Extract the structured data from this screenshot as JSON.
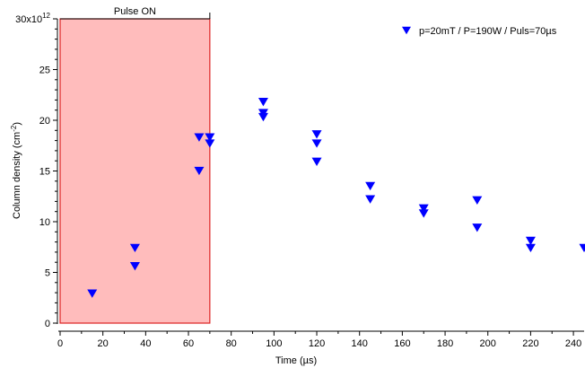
{
  "chart_data": {
    "type": "scatter",
    "xlabel": "Time (µs)",
    "ylabel": "Column density (cm",
    "ylabel_sup": "-2",
    "ylabel_close": ")",
    "xlim": [
      0,
      245
    ],
    "ylim": [
      0,
      30
    ],
    "x_ticks": [
      0,
      20,
      40,
      60,
      80,
      100,
      120,
      140,
      160,
      180,
      200,
      220,
      240
    ],
    "y_ticks": [
      {
        "value": 0,
        "label": "0"
      },
      {
        "value": 5,
        "label": "5"
      },
      {
        "value": 10,
        "label": "10"
      },
      {
        "value": 15,
        "label": "15"
      },
      {
        "value": 20,
        "label": "20"
      },
      {
        "value": 25,
        "label": "25"
      }
    ],
    "y_top_label": "30x10",
    "y_top_exponent": "12",
    "pulse_region": {
      "x_start": 0,
      "x_end": 70,
      "label": "Pulse ON",
      "fill": "#ffbcbc",
      "stroke": "#dd2222"
    },
    "marker_color": "#0000ff",
    "series": [
      {
        "name": "p=20mT / P=190W / Puls=70µs",
        "points": [
          {
            "x": 15,
            "y": 2.9
          },
          {
            "x": 35,
            "y": 7.4
          },
          {
            "x": 35,
            "y": 5.6
          },
          {
            "x": 65,
            "y": 18.3
          },
          {
            "x": 65,
            "y": 15.0
          },
          {
            "x": 70,
            "y": 18.3
          },
          {
            "x": 70,
            "y": 17.7
          },
          {
            "x": 95,
            "y": 21.8
          },
          {
            "x": 95,
            "y": 20.7
          },
          {
            "x": 95,
            "y": 20.3
          },
          {
            "x": 120,
            "y": 18.6
          },
          {
            "x": 120,
            "y": 17.7
          },
          {
            "x": 120,
            "y": 15.9
          },
          {
            "x": 145,
            "y": 13.5
          },
          {
            "x": 145,
            "y": 12.2
          },
          {
            "x": 170,
            "y": 11.3
          },
          {
            "x": 170,
            "y": 10.8
          },
          {
            "x": 195,
            "y": 12.1
          },
          {
            "x": 195,
            "y": 9.4
          },
          {
            "x": 220,
            "y": 8.1
          },
          {
            "x": 220,
            "y": 7.4
          },
          {
            "x": 245,
            "y": 7.4
          }
        ]
      }
    ],
    "legend": {
      "position": "top-right"
    }
  }
}
